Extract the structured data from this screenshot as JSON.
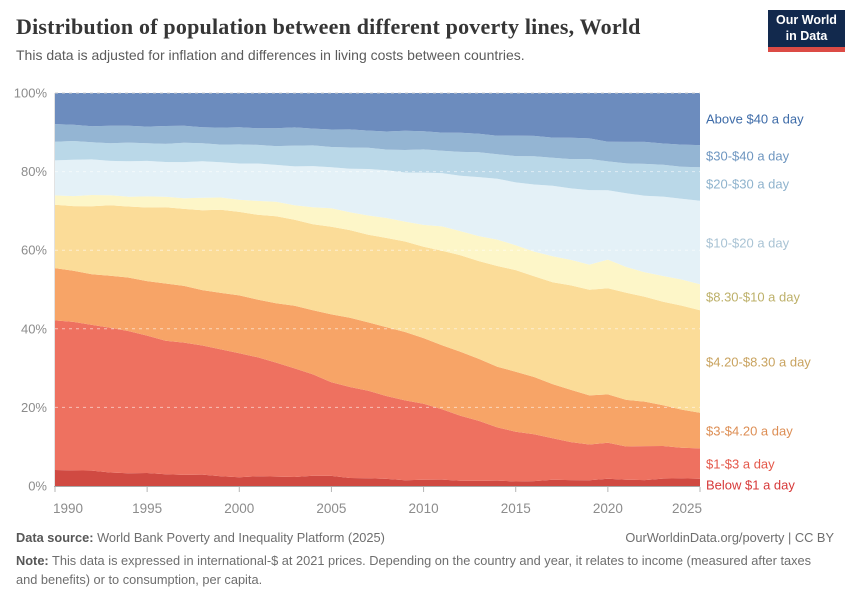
{
  "header": {
    "title": "Distribution of population between different poverty lines, World",
    "subtitle": "This data is adjusted for inflation and differences in living costs between countries."
  },
  "logo": {
    "line1": "Our World",
    "line2": "in Data",
    "bg_color": "#12294d",
    "bar_color": "#dc4b45"
  },
  "chart_data": {
    "type": "area",
    "stacked": true,
    "unit": "%",
    "title": "Distribution of population between different poverty lines, World",
    "xlabel": "",
    "ylabel": "",
    "xlim": [
      1990,
      2025
    ],
    "ylim": [
      0,
      100
    ],
    "grid": "dashed",
    "legend_position": "right",
    "x_ticks": [
      1990,
      1995,
      2000,
      2005,
      2010,
      2015,
      2020,
      2025
    ],
    "y_ticks": [
      "0%",
      "20%",
      "40%",
      "60%",
      "80%",
      "100%"
    ],
    "y_tick_values": [
      0,
      20,
      40,
      60,
      80,
      100
    ],
    "x": [
      1990,
      1993,
      1996,
      1999,
      2002,
      2005,
      2008,
      2011,
      2014,
      2017,
      2019,
      2020,
      2021,
      2023,
      2025
    ],
    "series": [
      {
        "name": "Below $1 a day",
        "color": "#d04a42",
        "label_color": "#d73a3a",
        "values": [
          4.1,
          3.6,
          3.0,
          2.5,
          2.4,
          2.4,
          1.8,
          1.4,
          1.3,
          1.4,
          1.5,
          1.7,
          1.7,
          1.8,
          1.9
        ]
      },
      {
        "name": "$1-$3 a day",
        "color": "#ee7160",
        "label_color": "#e4584a",
        "values": [
          38.1,
          36.9,
          34.0,
          32.5,
          29.1,
          24.1,
          21.2,
          18.1,
          13.7,
          10.6,
          9.0,
          9.3,
          8.6,
          8.2,
          7.6
        ]
      },
      {
        "name": "$3-$4.20 a day",
        "color": "#f7a467",
        "label_color": "#dd8e54",
        "values": [
          13.2,
          13.0,
          14.5,
          14.3,
          15.0,
          17.4,
          17.5,
          16.5,
          15.5,
          14.0,
          12.5,
          12.5,
          11.7,
          10.5,
          9.0
        ]
      },
      {
        "name": "$4.20-$8.30 a day",
        "color": "#fbdc98",
        "label_color": "#c9a35f",
        "values": [
          16.1,
          17.7,
          19.3,
          20.9,
          22.0,
          22.1,
          22.5,
          24.0,
          25.5,
          26.0,
          27.0,
          27.0,
          27.0,
          26.5,
          26.2
        ]
      },
      {
        "name": "$8.30-$10 a day",
        "color": "#fdf6c8",
        "label_color": "#bdb069",
        "values": [
          2.5,
          2.6,
          2.8,
          3.0,
          3.7,
          4.5,
          5.0,
          6.0,
          6.5,
          6.5,
          6.5,
          7.0,
          6.5,
          6.5,
          6.8
        ]
      },
      {
        "name": "$10-$20 a day",
        "color": "#e4f1f7",
        "label_color": "#a9c3d4",
        "values": [
          9.0,
          9.0,
          9.0,
          9.1,
          9.6,
          10.5,
          12.3,
          13.5,
          15.5,
          17.8,
          18.8,
          17.5,
          19.0,
          20.1,
          21.2
        ]
      },
      {
        "name": "$20-$30 a day",
        "color": "#bad8e8",
        "label_color": "#8fb3cd",
        "values": [
          4.6,
          4.6,
          4.6,
          4.7,
          4.9,
          5.3,
          5.5,
          5.8,
          6.5,
          7.2,
          7.7,
          7.5,
          7.8,
          8.1,
          8.3
        ]
      },
      {
        "name": "$30-$40 a day",
        "color": "#94b5d3",
        "label_color": "#6e96c0",
        "values": [
          4.3,
          4.3,
          4.3,
          4.3,
          4.4,
          4.5,
          4.6,
          4.7,
          4.9,
          5.2,
          5.3,
          5.3,
          5.4,
          5.5,
          5.5
        ]
      },
      {
        "name": "Above $40 a day",
        "color": "#6c8cbe",
        "label_color": "#3d6ba8",
        "values": [
          8.1,
          8.3,
          8.5,
          8.7,
          8.9,
          9.2,
          9.6,
          10.0,
          10.6,
          11.3,
          11.7,
          12.2,
          12.3,
          12.8,
          13.5
        ]
      }
    ]
  },
  "footer": {
    "datasource_label": "Data source:",
    "datasource_value": " World Bank Poverty and Inequality Platform (2025)",
    "right_text": "OurWorldinData.org/poverty | CC BY",
    "note_label": "Note:",
    "note_value": " This data is expressed in international-$ at 2021 prices. Depending on the country and year, it relates to income (measured after taxes and benefits) or to consumption, per capita."
  }
}
